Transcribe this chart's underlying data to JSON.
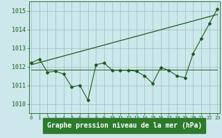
{
  "bg_color": "#cce8ec",
  "label_bg_color": "#2d7a2d",
  "grid_color": "#99bbbb",
  "line_color": "#1a5c1a",
  "xlabel": "Graphe pression niveau de la mer (hPa)",
  "xlabel_fontsize": 7,
  "ytick_labels": [
    "1010",
    "1011",
    "1012",
    "1013",
    "1014",
    "1015"
  ],
  "yticks": [
    1010,
    1011,
    1012,
    1013,
    1014,
    1015
  ],
  "xticks": [
    0,
    1,
    2,
    3,
    4,
    5,
    6,
    7,
    8,
    9,
    10,
    11,
    12,
    13,
    14,
    15,
    16,
    17,
    18,
    19,
    20,
    21,
    22,
    23
  ],
  "xtick_labels": [
    "0",
    "1",
    "2",
    "3",
    "4",
    "5",
    "6",
    "7",
    "8",
    "9",
    "10",
    "11",
    "12",
    "13",
    "14",
    "15",
    "16",
    "17",
    "18",
    "19",
    "20",
    "21",
    "22",
    "23"
  ],
  "ylim": [
    1009.5,
    1015.5
  ],
  "xlim": [
    -0.3,
    23.3
  ],
  "line1_x": [
    0,
    1,
    2,
    3,
    4,
    5,
    6,
    7,
    8,
    9,
    10,
    11,
    12,
    13,
    14,
    15,
    16,
    17,
    18,
    19,
    20,
    21,
    22,
    23
  ],
  "line1_y": [
    1012.2,
    1012.4,
    1011.7,
    1011.75,
    1011.6,
    1010.9,
    1011.0,
    1010.2,
    1012.1,
    1012.2,
    1011.8,
    1011.8,
    1011.8,
    1011.75,
    1011.5,
    1011.1,
    1011.95,
    1011.8,
    1011.5,
    1011.4,
    1012.7,
    1013.5,
    1014.3,
    1015.1
  ],
  "line2_x": [
    0,
    1,
    2,
    3,
    4,
    5,
    6,
    7,
    8,
    9,
    10,
    11,
    12,
    13,
    14,
    15,
    16,
    17,
    18,
    19,
    20,
    21,
    22,
    23
  ],
  "line2_y": [
    1011.85,
    1011.85,
    1011.85,
    1011.85,
    1011.85,
    1011.85,
    1011.85,
    1011.85,
    1011.85,
    1011.85,
    1011.85,
    1011.85,
    1011.85,
    1011.85,
    1011.85,
    1011.85,
    1011.85,
    1011.85,
    1011.85,
    1011.85,
    1011.85,
    1011.85,
    1011.85,
    1011.85
  ],
  "line3_x": [
    0,
    23
  ],
  "line3_y": [
    1012.1,
    1014.8
  ]
}
